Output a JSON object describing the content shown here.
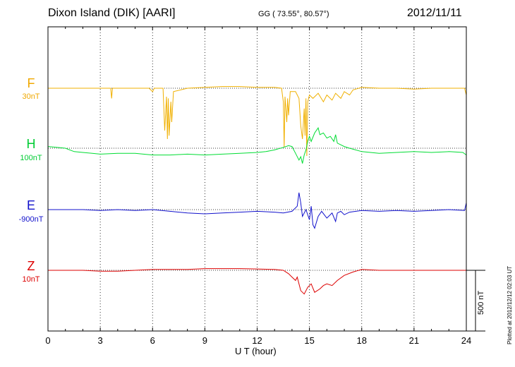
{
  "header": {
    "station": "Dixon Island (DIK)  [AARI]",
    "coords": "GG ( 73.55°,  80.57°)",
    "date": "2012/11/11"
  },
  "xaxis_label": "U T (hour)",
  "scalebar_label": "500 nT",
  "plotted_note": "Plotted at 2012/12/12 02:03 UT",
  "chart_data": {
    "type": "line",
    "xlim": [
      0,
      24
    ],
    "xticks": [
      "0",
      "3",
      "6",
      "9",
      "12",
      "15",
      "18",
      "21",
      "24"
    ],
    "xlabel": "U T (hour)",
    "grid": "dotted vertical every 3 h",
    "scale": "500 nT per scale bar",
    "series": [
      {
        "name": "F",
        "scale": "30nT",
        "color": "#f0b000",
        "baseline": 0,
        "points": [
          [
            0,
            0
          ],
          [
            1,
            0
          ],
          [
            2,
            0
          ],
          [
            3,
            0
          ],
          [
            3.6,
            0
          ],
          [
            3.65,
            -60
          ],
          [
            3.7,
            0
          ],
          [
            5,
            0
          ],
          [
            5.8,
            0
          ],
          [
            6,
            -20
          ],
          [
            6.1,
            0
          ],
          [
            6.6,
            0
          ],
          [
            6.7,
            -250
          ],
          [
            6.8,
            -50
          ],
          [
            6.85,
            -300
          ],
          [
            6.9,
            -60
          ],
          [
            6.95,
            -280
          ],
          [
            7.05,
            -80
          ],
          [
            7.1,
            -200
          ],
          [
            7.2,
            -20
          ],
          [
            8,
            0
          ],
          [
            9,
            5
          ],
          [
            10,
            10
          ],
          [
            11,
            10
          ],
          [
            12,
            5
          ],
          [
            13,
            5
          ],
          [
            13.4,
            0
          ],
          [
            13.5,
            -80
          ],
          [
            13.55,
            -350
          ],
          [
            13.6,
            -50
          ],
          [
            13.7,
            -200
          ],
          [
            13.75,
            -60
          ],
          [
            13.8,
            -160
          ],
          [
            13.9,
            -20
          ],
          [
            14.2,
            -20
          ],
          [
            14.4,
            -60
          ],
          [
            14.5,
            -220
          ],
          [
            14.6,
            -300
          ],
          [
            14.7,
            -120
          ],
          [
            14.75,
            -280
          ],
          [
            14.8,
            -60
          ],
          [
            14.85,
            -400
          ],
          [
            14.9,
            -80
          ],
          [
            15,
            -40
          ],
          [
            15.2,
            -60
          ],
          [
            15.5,
            -30
          ],
          [
            15.8,
            -80
          ],
          [
            16,
            -40
          ],
          [
            16.3,
            -70
          ],
          [
            16.5,
            -30
          ],
          [
            16.8,
            -60
          ],
          [
            17,
            -20
          ],
          [
            17.3,
            -40
          ],
          [
            17.5,
            -10
          ],
          [
            18,
            5
          ],
          [
            19,
            0
          ],
          [
            20,
            0
          ],
          [
            21,
            -5
          ],
          [
            22,
            0
          ],
          [
            23,
            0
          ],
          [
            23.9,
            0
          ],
          [
            24,
            -40
          ]
        ]
      },
      {
        "name": "H",
        "scale": "100nT",
        "color": "#00dd33",
        "baseline": 0,
        "points": [
          [
            0,
            10
          ],
          [
            0.5,
            5
          ],
          [
            1,
            0
          ],
          [
            1.5,
            -20
          ],
          [
            2,
            -25
          ],
          [
            3,
            -35
          ],
          [
            4,
            -30
          ],
          [
            5,
            -30
          ],
          [
            6,
            -40
          ],
          [
            7,
            -40
          ],
          [
            8,
            -35
          ],
          [
            9,
            -40
          ],
          [
            10,
            -35
          ],
          [
            11,
            -30
          ],
          [
            12,
            -25
          ],
          [
            12.5,
            -20
          ],
          [
            13,
            -10
          ],
          [
            13.5,
            5
          ],
          [
            13.8,
            15
          ],
          [
            14,
            10
          ],
          [
            14.2,
            -30
          ],
          [
            14.4,
            -70
          ],
          [
            14.5,
            -50
          ],
          [
            14.6,
            -90
          ],
          [
            14.7,
            -40
          ],
          [
            14.8,
            -10
          ],
          [
            14.9,
            40
          ],
          [
            15,
            70
          ],
          [
            15.1,
            40
          ],
          [
            15.3,
            90
          ],
          [
            15.5,
            120
          ],
          [
            15.6,
            80
          ],
          [
            15.8,
            90
          ],
          [
            16,
            60
          ],
          [
            16.2,
            70
          ],
          [
            16.4,
            40
          ],
          [
            16.5,
            80
          ],
          [
            16.6,
            30
          ],
          [
            16.8,
            20
          ],
          [
            17,
            10
          ],
          [
            17.3,
            0
          ],
          [
            18,
            -20
          ],
          [
            19,
            -30
          ],
          [
            20,
            -25
          ],
          [
            21,
            -20
          ],
          [
            22,
            -25
          ],
          [
            23,
            -20
          ],
          [
            23.8,
            -25
          ],
          [
            24,
            -40
          ]
        ]
      },
      {
        "name": "E",
        "scale": "-900nT",
        "color": "#1111cc",
        "baseline": 0,
        "points": [
          [
            0,
            0
          ],
          [
            1,
            0
          ],
          [
            2,
            0
          ],
          [
            3,
            -5
          ],
          [
            4,
            0
          ],
          [
            5,
            -5
          ],
          [
            6,
            0
          ],
          [
            7,
            -10
          ],
          [
            8,
            -20
          ],
          [
            9,
            -25
          ],
          [
            10,
            -20
          ],
          [
            11,
            -15
          ],
          [
            12,
            -10
          ],
          [
            13,
            -15
          ],
          [
            13.5,
            -20
          ],
          [
            14,
            -10
          ],
          [
            14.3,
            20
          ],
          [
            14.4,
            100
          ],
          [
            14.5,
            40
          ],
          [
            14.6,
            -40
          ],
          [
            14.8,
            0
          ],
          [
            15,
            -60
          ],
          [
            15.1,
            20
          ],
          [
            15.2,
            -90
          ],
          [
            15.3,
            -110
          ],
          [
            15.5,
            -40
          ],
          [
            15.7,
            -10
          ],
          [
            16,
            -50
          ],
          [
            16.3,
            -20
          ],
          [
            16.5,
            -70
          ],
          [
            16.6,
            -20
          ],
          [
            16.8,
            -10
          ],
          [
            17,
            -30
          ],
          [
            17.3,
            -15
          ],
          [
            18,
            -5
          ],
          [
            19,
            -10
          ],
          [
            20,
            -5
          ],
          [
            21,
            -10
          ],
          [
            22,
            -5
          ],
          [
            23,
            0
          ],
          [
            23.9,
            -5
          ],
          [
            24,
            40
          ]
        ]
      },
      {
        "name": "Z",
        "scale": "10nT",
        "color": "#dd0000",
        "baseline": 0,
        "points": [
          [
            0,
            0
          ],
          [
            1,
            0
          ],
          [
            2,
            0
          ],
          [
            3,
            -5
          ],
          [
            4,
            -5
          ],
          [
            5,
            0
          ],
          [
            6,
            5
          ],
          [
            7,
            5
          ],
          [
            8,
            5
          ],
          [
            9,
            10
          ],
          [
            10,
            10
          ],
          [
            11,
            10
          ],
          [
            12,
            8
          ],
          [
            13,
            5
          ],
          [
            13.5,
            0
          ],
          [
            13.8,
            -20
          ],
          [
            14,
            -40
          ],
          [
            14.2,
            -60
          ],
          [
            14.3,
            -40
          ],
          [
            14.5,
            -120
          ],
          [
            14.7,
            -140
          ],
          [
            14.9,
            -100
          ],
          [
            15.1,
            -80
          ],
          [
            15.3,
            -130
          ],
          [
            15.6,
            -110
          ],
          [
            15.8,
            -90
          ],
          [
            16,
            -80
          ],
          [
            16.3,
            -90
          ],
          [
            16.6,
            -60
          ],
          [
            17,
            -30
          ],
          [
            17.5,
            -10
          ],
          [
            18,
            5
          ],
          [
            19,
            0
          ],
          [
            20,
            0
          ],
          [
            21,
            0
          ],
          [
            22,
            0
          ],
          [
            23,
            0
          ],
          [
            24,
            0
          ]
        ]
      }
    ]
  }
}
